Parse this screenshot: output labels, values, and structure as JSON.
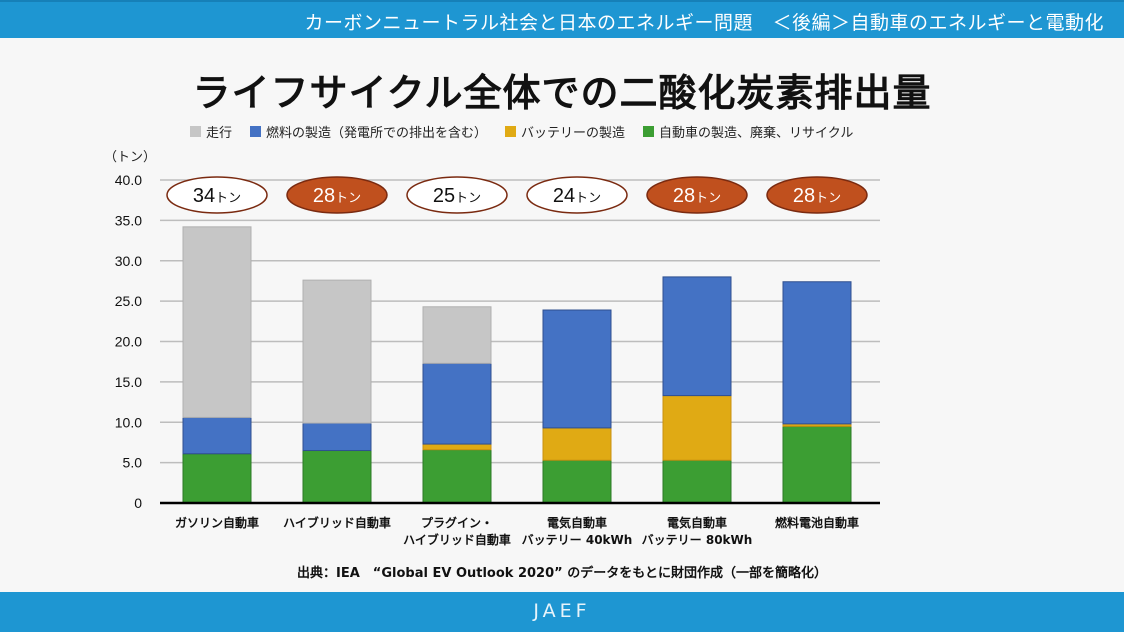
{
  "header": {
    "title": "カーボンニュートラル社会と日本のエネルギー問題　＜後編＞自動車のエネルギーと電動化"
  },
  "footer": {
    "logo": "JAEF"
  },
  "source_note": "出典：IEA　“Global EV Outlook 2020” のデータをもとに財団作成（一部を簡略化）",
  "chart_data": {
    "type": "bar",
    "stacked": true,
    "title": "ライフサイクル全体での二酸化炭素排出量",
    "ylabel": "（トン）",
    "xlabel": "",
    "ylim": [
      0,
      40
    ],
    "yticks": [
      "0",
      "5.0",
      "10.0",
      "15.0",
      "20.0",
      "25.0",
      "30.0",
      "35.0",
      "40.0"
    ],
    "ytick_values": [
      0,
      5,
      10,
      15,
      20,
      25,
      30,
      35,
      40
    ],
    "grid": true,
    "legend_position": "top",
    "categories": [
      [
        "ガソリン自動車"
      ],
      [
        "ハイブリッド自動車"
      ],
      [
        "プラグイン・",
        "ハイブリッド自動車"
      ],
      [
        "電気自動車",
        "バッテリー 40kWh"
      ],
      [
        "電気自動車",
        "バッテリー 80kWh"
      ],
      [
        "燃料電池自動車"
      ]
    ],
    "series": [
      {
        "name": "自動車の製造、廃棄、リサイクル",
        "color": "#3c9e33",
        "values": [
          6.1,
          6.5,
          6.6,
          5.3,
          5.3,
          9.5
        ]
      },
      {
        "name": "バッテリーの製造",
        "color": "#e0aa14",
        "values": [
          0,
          0,
          0.7,
          4.0,
          8.0,
          0.3
        ]
      },
      {
        "name": "燃料の製造（発電所での排出を含む）",
        "color": "#4472c4",
        "values": [
          4.5,
          3.4,
          10.0,
          14.6,
          14.7,
          17.6
        ]
      },
      {
        "name": "走行",
        "color": "#c6c6c6",
        "values": [
          23.6,
          17.7,
          7.0,
          0,
          0,
          0
        ]
      }
    ],
    "legend_order": [
      "走行",
      "燃料の製造（発電所での排出を含む）",
      "バッテリーの製造",
      "自動車の製造、廃棄、リサイクル"
    ],
    "annotations": [
      {
        "text": "34",
        "unit": "トン",
        "style": "outline"
      },
      {
        "text": "28",
        "unit": "トン",
        "style": "filled"
      },
      {
        "text": "25",
        "unit": "トン",
        "style": "outline"
      },
      {
        "text": "24",
        "unit": "トン",
        "style": "outline"
      },
      {
        "text": "28",
        "unit": "トン",
        "style": "filled"
      },
      {
        "text": "28",
        "unit": "トン",
        "style": "filled"
      }
    ],
    "annotation_colors": {
      "filled_bg": "#c0501e",
      "filled_text": "#ffffff",
      "outline_border": "#7a2a10",
      "outline_text": "#111111"
    }
  },
  "legend": [
    {
      "label": "走行",
      "color": "#c6c6c6"
    },
    {
      "label": "燃料の製造（発電所での排出を含む）",
      "color": "#4472c4"
    },
    {
      "label": "バッテリーの製造",
      "color": "#e0aa14"
    },
    {
      "label": "自動車の製造、廃棄、リサイクル",
      "color": "#3c9e33"
    }
  ]
}
